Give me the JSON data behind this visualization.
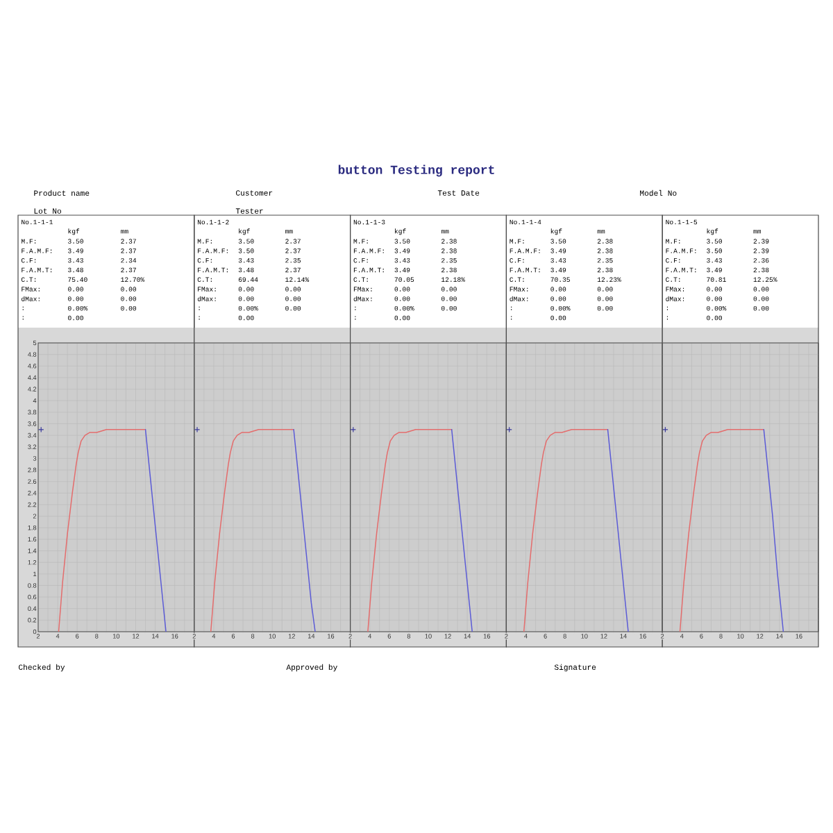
{
  "chart_data": [
    {
      "type": "other",
      "title": "button Testing report",
      "annotations": [
        "Product name",
        "Customer",
        "Test Date",
        "Model No",
        "Lot No",
        "Tester"
      ]
    },
    {
      "type": "line",
      "xlim": [
        2,
        18
      ],
      "xticks": [
        2,
        {
          "value": 3,
          "label": null
        },
        4,
        {
          "value": 5,
          "label": null
        },
        6,
        {
          "value": 7,
          "label": null
        },
        8,
        {
          "value": 9,
          "label": null
        },
        10,
        {
          "value": 11,
          "label": null
        },
        12,
        {
          "value": 13,
          "label": null
        },
        14,
        {
          "value": 15,
          "label": null
        },
        16,
        {
          "value": 17,
          "label": null
        }
      ],
      "ylim": [
        0,
        5
      ],
      "yticks": [
        0,
        0.2,
        0.4,
        0.6,
        0.8,
        1,
        1.2,
        1.4,
        1.6,
        1.8,
        2,
        2.2,
        2.4,
        2.6,
        2.8,
        3,
        3.2,
        3.4,
        3.6,
        3.8,
        4,
        4.2,
        4.4,
        4.6,
        4.8,
        5
      ],
      "grid": true,
      "annotations": [
        "No.1-1-1",
        "kgf",
        "mm",
        "M.F:",
        "3.50",
        "2.37",
        "F.A.M.F:",
        "3.49",
        "2.37",
        "C.F:",
        "3.43",
        "2.34",
        "F.A.M.T:",
        "3.48",
        "2.37",
        "C.T:",
        "75.40",
        "12.70%",
        "FMax:",
        "0.00",
        "0.00",
        "dMax:",
        "0.00",
        "0.00",
        ":",
        "0.00%",
        "0.00",
        ":",
        "0.00"
      ],
      "series": [
        {
          "type": "line",
          "color": "#e46c6c",
          "x": [
            4.1,
            4.5,
            5.0,
            5.5,
            5.9,
            6.1,
            6.4,
            6.8,
            7.3,
            8.0,
            9.0,
            10.0,
            11.0,
            12.0,
            13.0
          ],
          "values": [
            0,
            0.85,
            1.7,
            2.4,
            2.9,
            3.1,
            3.3,
            3.4,
            3.45,
            3.45,
            3.5,
            3.5,
            3.5,
            3.5,
            3.5
          ]
        },
        {
          "type": "line",
          "color": "#5b5bd6",
          "x": [
            13.0,
            13.3,
            13.9,
            14.5,
            14.8,
            15.1
          ],
          "values": [
            3.5,
            3.0,
            2.0,
            1.0,
            0.5,
            0
          ]
        },
        {
          "type": "scatter",
          "color": "#3a3a9c",
          "marker": "cross",
          "x": [
            2.3
          ],
          "values": [
            3.5
          ]
        }
      ]
    },
    {
      "type": "line",
      "xlim": [
        2,
        18
      ],
      "xticks": [
        2,
        {
          "value": 3,
          "label": null
        },
        4,
        {
          "value": 5,
          "label": null
        },
        6,
        {
          "value": 7,
          "label": null
        },
        8,
        {
          "value": 9,
          "label": null
        },
        10,
        {
          "value": 11,
          "label": null
        },
        12,
        {
          "value": 13,
          "label": null
        },
        14,
        {
          "value": 15,
          "label": null
        },
        16,
        {
          "value": 17,
          "label": null
        }
      ],
      "ylim": [
        0,
        5
      ],
      "yticks": [
        0,
        0.2,
        0.4,
        0.6,
        0.8,
        1,
        1.2,
        1.4,
        1.6,
        1.8,
        2,
        2.2,
        2.4,
        2.6,
        2.8,
        3,
        3.2,
        3.4,
        3.6,
        3.8,
        4,
        4.2,
        4.4,
        4.6,
        4.8,
        5
      ],
      "grid": true,
      "tick_labels": "x",
      "annotations": [
        "No.1-1-2",
        "kgf",
        "mm",
        "M.F:",
        "3.50",
        "2.37",
        "F.A.M.F:",
        "3.50",
        "2.37",
        "C.F:",
        "3.43",
        "2.35",
        "F.A.M.T:",
        "3.48",
        "2.37",
        "C.T:",
        "69.44",
        "12.14%",
        "FMax:",
        "0.00",
        "0.00",
        "dMax:",
        "0.00",
        "0.00",
        ":",
        "0.00%",
        "0.00",
        ":",
        "0.00"
      ],
      "series": [
        {
          "type": "line",
          "color": "#e46c6c",
          "x": [
            3.7,
            4.1,
            4.6,
            5.1,
            5.5,
            5.7,
            6.0,
            6.4,
            6.9,
            7.6,
            8.6,
            9.6,
            10.6,
            11.4,
            12.2
          ],
          "values": [
            0,
            0.85,
            1.7,
            2.4,
            2.9,
            3.1,
            3.3,
            3.4,
            3.45,
            3.45,
            3.5,
            3.5,
            3.5,
            3.5,
            3.5
          ]
        },
        {
          "type": "line",
          "color": "#5b5bd6",
          "x": [
            12.2,
            12.5,
            13.1,
            13.7,
            14.0,
            14.4
          ],
          "values": [
            3.5,
            3.0,
            2.0,
            1.0,
            0.5,
            0
          ]
        },
        {
          "type": "scatter",
          "color": "#3a3a9c",
          "marker": "cross",
          "x": [
            2.3
          ],
          "values": [
            3.5
          ]
        }
      ]
    },
    {
      "type": "line",
      "xlim": [
        2,
        18
      ],
      "xticks": [
        2,
        {
          "value": 3,
          "label": null
        },
        4,
        {
          "value": 5,
          "label": null
        },
        6,
        {
          "value": 7,
          "label": null
        },
        8,
        {
          "value": 9,
          "label": null
        },
        10,
        {
          "value": 11,
          "label": null
        },
        12,
        {
          "value": 13,
          "label": null
        },
        14,
        {
          "value": 15,
          "label": null
        },
        16,
        {
          "value": 17,
          "label": null
        }
      ],
      "ylim": [
        0,
        5
      ],
      "yticks": [
        0,
        0.2,
        0.4,
        0.6,
        0.8,
        1,
        1.2,
        1.4,
        1.6,
        1.8,
        2,
        2.2,
        2.4,
        2.6,
        2.8,
        3,
        3.2,
        3.4,
        3.6,
        3.8,
        4,
        4.2,
        4.4,
        4.6,
        4.8,
        5
      ],
      "grid": true,
      "tick_labels": "x",
      "annotations": [
        "No.1-1-3",
        "kgf",
        "mm",
        "M.F:",
        "3.50",
        "2.38",
        "F.A.M.F:",
        "3.49",
        "2.38",
        "C.F:",
        "3.43",
        "2.35",
        "F.A.M.T:",
        "3.49",
        "2.38",
        "C.T:",
        "70.05",
        "12.18%",
        "FMax:",
        "0.00",
        "0.00",
        "dMax:",
        "0.00",
        "0.00",
        ":",
        "0.00%",
        "0.00",
        ":",
        "0.00"
      ],
      "series": [
        {
          "type": "line",
          "color": "#e46c6c",
          "x": [
            3.8,
            4.2,
            4.7,
            5.2,
            5.6,
            5.8,
            6.1,
            6.5,
            7.0,
            7.7,
            8.7,
            9.7,
            10.7,
            11.6,
            12.4
          ],
          "values": [
            0,
            0.85,
            1.7,
            2.4,
            2.9,
            3.1,
            3.3,
            3.4,
            3.45,
            3.45,
            3.5,
            3.5,
            3.5,
            3.5,
            3.5
          ]
        },
        {
          "type": "line",
          "color": "#5b5bd6",
          "x": [
            12.4,
            12.7,
            13.3,
            13.9,
            14.2,
            14.5
          ],
          "values": [
            3.5,
            3.0,
            2.0,
            1.0,
            0.5,
            0
          ]
        },
        {
          "type": "scatter",
          "color": "#3a3a9c",
          "marker": "cross",
          "x": [
            2.3
          ],
          "values": [
            3.5
          ]
        }
      ]
    },
    {
      "type": "line",
      "xlim": [
        2,
        18
      ],
      "xticks": [
        2,
        {
          "value": 3,
          "label": null
        },
        4,
        {
          "value": 5,
          "label": null
        },
        6,
        {
          "value": 7,
          "label": null
        },
        8,
        {
          "value": 9,
          "label": null
        },
        10,
        {
          "value": 11,
          "label": null
        },
        12,
        {
          "value": 13,
          "label": null
        },
        14,
        {
          "value": 15,
          "label": null
        },
        16,
        {
          "value": 17,
          "label": null
        }
      ],
      "ylim": [
        0,
        5
      ],
      "yticks": [
        0,
        0.2,
        0.4,
        0.6,
        0.8,
        1,
        1.2,
        1.4,
        1.6,
        1.8,
        2,
        2.2,
        2.4,
        2.6,
        2.8,
        3,
        3.2,
        3.4,
        3.6,
        3.8,
        4,
        4.2,
        4.4,
        4.6,
        4.8,
        5
      ],
      "grid": true,
      "tick_labels": "x",
      "annotations": [
        "No.1-1-4",
        "kgf",
        "mm",
        "M.F:",
        "3.50",
        "2.38",
        "F.A.M.F:",
        "3.49",
        "2.38",
        "C.F:",
        "3.43",
        "2.35",
        "F.A.M.T:",
        "3.49",
        "2.38",
        "C.T:",
        "70.35",
        "12.23%",
        "FMax:",
        "0.00",
        "0.00",
        "dMax:",
        "0.00",
        "0.00",
        ":",
        "0.00%",
        "0.00",
        ":",
        "0.00"
      ],
      "series": [
        {
          "type": "line",
          "color": "#e46c6c",
          "x": [
            3.8,
            4.2,
            4.7,
            5.2,
            5.6,
            5.8,
            6.1,
            6.5,
            7.0,
            7.7,
            8.7,
            9.7,
            10.7,
            11.6,
            12.4
          ],
          "values": [
            0,
            0.85,
            1.7,
            2.4,
            2.9,
            3.1,
            3.3,
            3.4,
            3.45,
            3.45,
            3.5,
            3.5,
            3.5,
            3.5,
            3.5
          ]
        },
        {
          "type": "line",
          "color": "#5b5bd6",
          "x": [
            12.4,
            12.7,
            13.3,
            13.9,
            14.2,
            14.5
          ],
          "values": [
            3.5,
            3.0,
            2.0,
            1.0,
            0.5,
            0
          ]
        },
        {
          "type": "scatter",
          "color": "#3a3a9c",
          "marker": "cross",
          "x": [
            2.3
          ],
          "values": [
            3.5
          ]
        }
      ]
    },
    {
      "type": "line",
      "xlim": [
        2,
        18
      ],
      "xticks": [
        2,
        {
          "value": 3,
          "label": null
        },
        4,
        {
          "value": 5,
          "label": null
        },
        6,
        {
          "value": 7,
          "label": null
        },
        8,
        {
          "value": 9,
          "label": null
        },
        10,
        {
          "value": 11,
          "label": null
        },
        12,
        {
          "value": 13,
          "label": null
        },
        14,
        {
          "value": 15,
          "label": null
        },
        16,
        {
          "value": 17,
          "label": null
        }
      ],
      "ylim": [
        0,
        5
      ],
      "yticks": [
        0,
        0.2,
        0.4,
        0.6,
        0.8,
        1,
        1.2,
        1.4,
        1.6,
        1.8,
        2,
        2.2,
        2.4,
        2.6,
        2.8,
        3,
        3.2,
        3.4,
        3.6,
        3.8,
        4,
        4.2,
        4.4,
        4.6,
        4.8,
        5
      ],
      "grid": true,
      "tick_labels": "x",
      "annotations": [
        "No.1-1-5",
        "kgf",
        "mm",
        "M.F:",
        "3.50",
        "2.39",
        "F.A.M.F:",
        "3.50",
        "2.39",
        "C.F:",
        "3.43",
        "2.36",
        "F.A.M.T:",
        "3.49",
        "2.38",
        "C.T:",
        "70.81",
        "12.25%",
        "FMax:",
        "0.00",
        "0.00",
        "dMax:",
        "0.00",
        "0.00",
        ":",
        "0.00%",
        "0.00",
        ":",
        "0.00"
      ],
      "series": [
        {
          "type": "line",
          "color": "#e46c6c",
          "x": [
            3.8,
            4.2,
            4.7,
            5.2,
            5.6,
            5.8,
            6.1,
            6.5,
            7.0,
            7.7,
            8.7,
            9.7,
            10.7,
            11.6,
            12.4
          ],
          "values": [
            0,
            0.85,
            1.7,
            2.4,
            2.9,
            3.1,
            3.3,
            3.4,
            3.45,
            3.45,
            3.5,
            3.5,
            3.5,
            3.5,
            3.5
          ]
        },
        {
          "type": "line",
          "color": "#5b5bd6",
          "x": [
            12.4,
            12.7,
            13.3,
            13.8,
            14.1,
            14.4
          ],
          "values": [
            3.5,
            3.0,
            2.0,
            1.0,
            0.5,
            0
          ]
        },
        {
          "type": "scatter",
          "color": "#3a3a9c",
          "marker": "cross",
          "x": [
            2.3
          ],
          "values": [
            3.5
          ]
        }
      ]
    },
    {
      "type": "other",
      "annotations": [
        "Checked by",
        "Approved by",
        "Signature"
      ]
    }
  ]
}
